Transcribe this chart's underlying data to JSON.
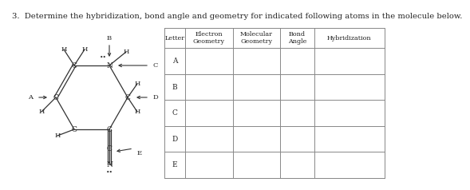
{
  "title": "3.  Determine the hybridization, bond angle and geometry for indicated following atoms in the molecule below.",
  "title_fontsize": 7.2,
  "table_headers": [
    "Letter",
    "Electron\nGeometry",
    "Molecular\nGeometry",
    "Bond\nAngle",
    "Hybridization"
  ],
  "table_rows": [
    "A",
    "B",
    "C",
    "D",
    "E"
  ],
  "bg_color": "#ffffff",
  "text_color": "#222222",
  "bond_color": "#333333",
  "table_line_color": "#888888"
}
